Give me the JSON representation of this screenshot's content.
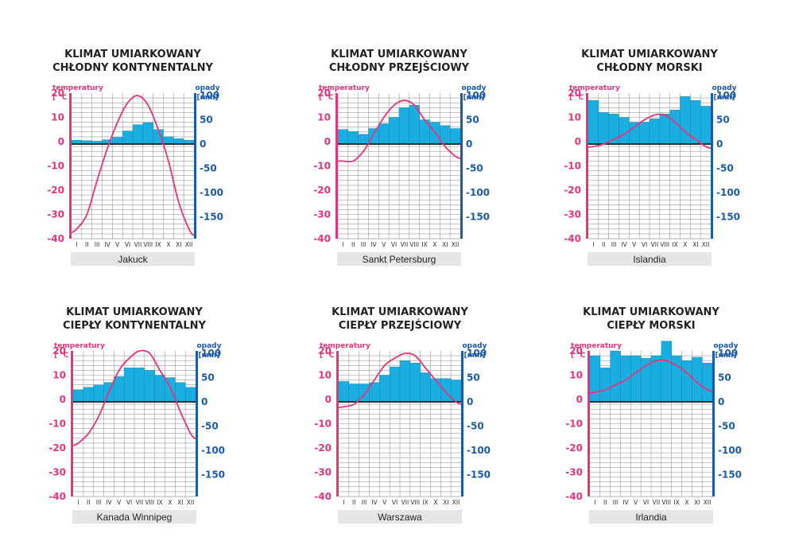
{
  "colors": {
    "temp": "#e8337a",
    "precip_axis": "#1b5aa6",
    "bar": "#1aaee0",
    "bar_edge": "#0d7fb0",
    "grid": "#9a9a9a",
    "label_bg": "#e6e6e6"
  },
  "chart_data": [
    {
      "type": "bar",
      "title": [
        "KLIMAT UMIARKOWANY",
        "CHŁODNY KONTYNENTALNY"
      ],
      "station": "Jakuck",
      "left_unit": [
        "temperatury",
        "[ °C ]"
      ],
      "right_unit": [
        "opady",
        "[mm]"
      ],
      "categories": [
        "I",
        "II",
        "III",
        "IV",
        "V",
        "VI",
        "VII",
        "VIII",
        "IX",
        "X",
        "XI",
        "XII"
      ],
      "temp_ticks": [
        "20",
        "10",
        "0",
        "-10",
        "-20",
        "-30",
        "-40"
      ],
      "precip_ticks": [
        "100",
        "50",
        "0",
        "-50",
        "-100",
        "-150"
      ],
      "temp_range": [
        -40,
        20
      ],
      "precip_range": [
        -195,
        105
      ],
      "temperature": [
        -36,
        -30,
        -16,
        -3,
        8,
        16,
        19,
        15,
        5,
        -8,
        -25,
        -36
      ],
      "precipitation": [
        8,
        7,
        6,
        9,
        14,
        27,
        40,
        44,
        30,
        15,
        11,
        8
      ]
    },
    {
      "type": "bar",
      "title": [
        "KLIMAT UMIARKOWANY",
        "CHŁODNY PRZEJŚCIOWY"
      ],
      "station": "Sankt Petersburg",
      "left_unit": [
        "temperatury",
        "[ °C ]"
      ],
      "right_unit": [
        "opady",
        "[mm]"
      ],
      "categories": [
        "I",
        "II",
        "III",
        "IV",
        "V",
        "VI",
        "VII",
        "VIII",
        "IX",
        "X",
        "XI",
        "XII"
      ],
      "temp_ticks": [
        "20",
        "10",
        "0",
        "-10",
        "-20",
        "-30",
        "-40"
      ],
      "precip_ticks": [
        "100",
        "50",
        "0",
        "-50",
        "-100",
        "-150"
      ],
      "temp_range": [
        -40,
        20
      ],
      "precip_range": [
        -195,
        105
      ],
      "temperature": [
        -8,
        -8,
        -4,
        3,
        10,
        15,
        17,
        15,
        9,
        4,
        -2,
        -6
      ],
      "precipitation": [
        30,
        26,
        20,
        32,
        42,
        55,
        75,
        80,
        50,
        45,
        38,
        32
      ]
    },
    {
      "type": "bar",
      "title": [
        "KLIMAT UMIARKOWANY",
        "CHŁODNY MORSKI"
      ],
      "station": "Islandia",
      "left_unit": [
        "temperatury",
        "[ °C ]"
      ],
      "right_unit": [
        "opady",
        "[mm]"
      ],
      "categories": [
        "I",
        "II",
        "III",
        "IV",
        "V",
        "VI",
        "VII",
        "VIII",
        "IX",
        "X",
        "XI",
        "XII"
      ],
      "temp_ticks": [
        "20",
        "10",
        "0",
        "-10",
        "-20",
        "-30",
        "-40"
      ],
      "precip_ticks": [
        "100",
        "50",
        "0",
        "-50",
        "-100",
        "-150"
      ],
      "temp_range": [
        -40,
        20
      ],
      "precip_range": [
        -195,
        105
      ],
      "temperature": [
        -2,
        -1,
        1,
        3,
        6,
        9,
        11,
        11,
        8,
        4,
        1,
        -2
      ],
      "precipitation": [
        90,
        65,
        62,
        55,
        45,
        45,
        52,
        62,
        70,
        98,
        90,
        78
      ]
    },
    {
      "type": "bar",
      "title": [
        "KLIMAT UMIARKOWANY",
        "CIEPŁY KONTYNENTALNY"
      ],
      "station": "Kanada Winnipeg",
      "left_unit": [
        "temperatury",
        "[ °C ]"
      ],
      "right_unit": [
        "opady",
        "[mm]"
      ],
      "categories": [
        "I",
        "II",
        "III",
        "IV",
        "V",
        "VI",
        "VII",
        "VIII",
        "IX",
        "X",
        "XI",
        "XII"
      ],
      "temp_ticks": [
        "20",
        "10",
        "0",
        "-10",
        "-20",
        "-30",
        "-40"
      ],
      "precip_ticks": [
        "100",
        "50",
        "0",
        "-50",
        "-100",
        "-150"
      ],
      "temp_range": [
        -40,
        20
      ],
      "precip_range": [
        -195,
        105
      ],
      "temperature": [
        -18,
        -14,
        -7,
        3,
        12,
        17,
        20,
        19,
        12,
        5,
        -5,
        -14
      ],
      "precipitation": [
        25,
        30,
        35,
        40,
        52,
        70,
        70,
        65,
        55,
        50,
        40,
        30
      ]
    },
    {
      "type": "bar",
      "title": [
        "KLIMAT UMIARKOWANY",
        "CIEPŁY PRZEJŚCIOWY"
      ],
      "station": "Warszawa",
      "left_unit": [
        "temperatury",
        "[ °C ]"
      ],
      "right_unit": [
        "opady",
        "[mm]"
      ],
      "categories": [
        "I",
        "II",
        "III",
        "IV",
        "V",
        "VI",
        "VII",
        "VIII",
        "IX",
        "X",
        "XI",
        "XII"
      ],
      "temp_ticks": [
        "20",
        "10",
        "0",
        "-10",
        "-20",
        "-30",
        "-40"
      ],
      "precip_ticks": [
        "100",
        "50",
        "0",
        "-50",
        "-100",
        "-150"
      ],
      "temp_range": [
        -40,
        20
      ],
      "precip_range": [
        -195,
        105
      ],
      "temperature": [
        -3,
        -2,
        2,
        8,
        14,
        17,
        19,
        18,
        13,
        8,
        3,
        -1
      ],
      "precipitation": [
        42,
        37,
        37,
        40,
        55,
        72,
        85,
        80,
        60,
        48,
        48,
        45
      ]
    },
    {
      "type": "bar",
      "title": [
        "KLIMAT UMIARKOWANY",
        "CIEPŁY MORSKI"
      ],
      "station": "Irlandia",
      "left_unit": [
        "temperatury",
        "[ °C ]"
      ],
      "right_unit": [
        "opady",
        "[mm]"
      ],
      "categories": [
        "I",
        "II",
        "III",
        "IV",
        "V",
        "VI",
        "VII",
        "VIII",
        "IX",
        "X",
        "XI",
        "XII"
      ],
      "temp_ticks": [
        "20",
        "10",
        "0",
        "-10",
        "-20",
        "-30",
        "-40"
      ],
      "precip_ticks": [
        "100",
        "50",
        "0",
        "-50",
        "-100",
        "-150"
      ],
      "temp_range": [
        -40,
        20
      ],
      "precip_range": [
        -195,
        105
      ],
      "temperature": [
        3,
        4,
        6,
        8,
        11,
        14,
        16,
        16,
        14,
        11,
        7,
        4
      ],
      "precipitation": [
        95,
        70,
        105,
        95,
        95,
        90,
        95,
        125,
        95,
        85,
        92,
        80
      ]
    }
  ]
}
